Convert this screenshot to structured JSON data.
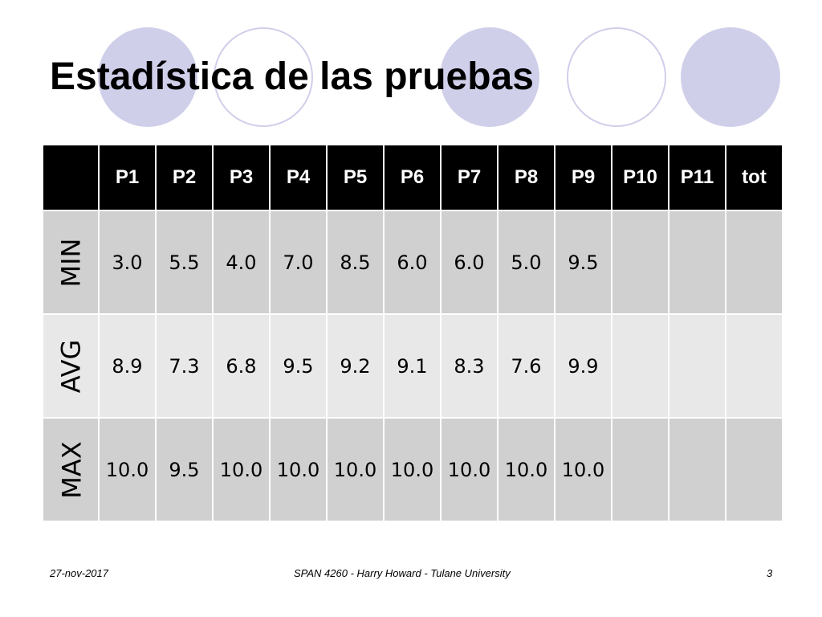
{
  "slide": {
    "title": "Estadística de las pruebas",
    "footer": {
      "date": "27-nov-2017",
      "course": "SPAN 4260 - Harry Howard - Tulane University",
      "page_number": "3"
    }
  },
  "colors": {
    "decor_circle": "#d0cfea",
    "header_bg": "#000000",
    "row_dark": "#d0d0d0",
    "row_light": "#e8e8e8"
  },
  "table": {
    "headers": [
      "",
      "P1",
      "P2",
      "P3",
      "P4",
      "P5",
      "P6",
      "P7",
      "P8",
      "P9",
      "P10",
      "P11",
      "tot"
    ],
    "rows": [
      {
        "label": "MIN",
        "values": [
          "3.0",
          "5.5",
          "4.0",
          "7.0",
          "8.5",
          "6.0",
          "6.0",
          "5.0",
          "9.5",
          "",
          "",
          ""
        ]
      },
      {
        "label": "AVG",
        "values": [
          "8.9",
          "7.3",
          "6.8",
          "9.5",
          "9.2",
          "9.1",
          "8.3",
          "7.6",
          "9.9",
          "",
          "",
          ""
        ]
      },
      {
        "label": "MAX",
        "values": [
          "10.0",
          "9.5",
          "10.0",
          "10.0",
          "10.0",
          "10.0",
          "10.0",
          "10.0",
          "10.0",
          "",
          "",
          ""
        ]
      }
    ]
  }
}
